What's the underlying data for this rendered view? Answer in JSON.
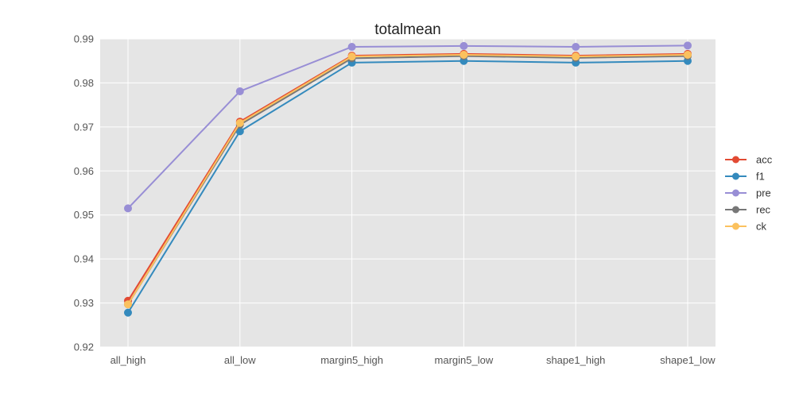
{
  "chart_data": {
    "type": "line",
    "title": "totalmean",
    "xlabel": "",
    "ylabel": "",
    "categories": [
      "all_high",
      "all_low",
      "margin5_high",
      "margin5_low",
      "shape1_high",
      "shape1_low"
    ],
    "ylim": [
      0.92,
      0.99
    ],
    "yticks": [
      0.92,
      0.93,
      0.94,
      0.95,
      0.96,
      0.97,
      0.98,
      0.99
    ],
    "ytick_labels": [
      "0.92",
      "0.93",
      "0.94",
      "0.95",
      "0.96",
      "0.97",
      "0.98",
      "0.99"
    ],
    "grid": true,
    "legend_position": "right",
    "series": [
      {
        "name": "acc",
        "color": "#E24A33",
        "values": [
          0.9305,
          0.9712,
          0.9862,
          0.9866,
          0.9862,
          0.9866
        ]
      },
      {
        "name": "f1",
        "color": "#348ABD",
        "values": [
          0.9278,
          0.969,
          0.9846,
          0.985,
          0.9846,
          0.985
        ]
      },
      {
        "name": "pre",
        "color": "#988ED5",
        "values": [
          0.9515,
          0.9781,
          0.9882,
          0.9884,
          0.9882,
          0.9885
        ]
      },
      {
        "name": "rec",
        "color": "#777777",
        "values": [
          0.9297,
          0.9705,
          0.9856,
          0.9861,
          0.9857,
          0.9861
        ]
      },
      {
        "name": "ck",
        "color": "#FBC15E",
        "values": [
          0.9297,
          0.9709,
          0.986,
          0.9864,
          0.986,
          0.9864
        ]
      }
    ]
  }
}
